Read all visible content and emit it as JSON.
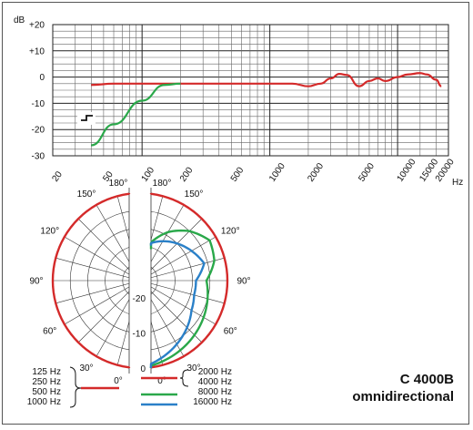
{
  "chart_data": [
    {
      "type": "line",
      "yunit": "dB",
      "xunit": "Hz",
      "xscale": "log",
      "xlim": [
        20,
        25000
      ],
      "ylim": [
        -30,
        20
      ],
      "yticks": [
        "+20",
        "+10",
        "0",
        "-10",
        "-20",
        "-30"
      ],
      "ytick_values": [
        20,
        10,
        0,
        -10,
        -20,
        -30
      ],
      "xticks": [
        "20",
        "50",
        "100",
        "200",
        "500",
        "1000",
        "2000",
        "5000",
        "10000",
        "15000",
        "20000"
      ],
      "xtick_values": [
        20,
        50,
        100,
        200,
        500,
        1000,
        2000,
        5000,
        10000,
        15000,
        20000
      ],
      "grid": true,
      "series": [
        {
          "color": "#d42a2a",
          "x": [
            40,
            60,
            100,
            200,
            500,
            1000,
            1500,
            2000,
            2500,
            3000,
            3500,
            4000,
            5000,
            6000,
            7000,
            8000,
            10000,
            12000,
            15000,
            17000,
            20000,
            22000
          ],
          "y": [
            -3,
            -2.5,
            -2.5,
            -2.5,
            -2.5,
            -2.5,
            -2.5,
            -3.5,
            -2.5,
            -0.5,
            1.2,
            0.8,
            -3.5,
            -1.5,
            -0.5,
            -1.5,
            0,
            1,
            1.5,
            1,
            -1,
            -3.5
          ]
        },
        {
          "color": "#2aa84a",
          "x": [
            40,
            60,
            100,
            150,
            200
          ],
          "y": [
            -26,
            -18,
            -9,
            -3,
            -2.5
          ]
        }
      ],
      "switch_symbol": "low-cut-switch-icon"
    },
    {
      "type": "polar",
      "angle_labels": [
        "180°",
        "150°",
        "120°",
        "90°",
        "60°",
        "30°",
        "0°"
      ],
      "angle_label_values": [
        180,
        150,
        120,
        90,
        60,
        30,
        0
      ],
      "radial_labels": [
        "0",
        "-10",
        "-20"
      ],
      "radial_values": [
        0,
        -10,
        -20
      ],
      "rlim": [
        -25,
        0
      ],
      "series": [
        {
          "group": "left",
          "color": "#d42a2a",
          "frequencies": [
            "125 Hz",
            "250 Hz",
            "500 Hz",
            "1000 Hz"
          ],
          "angles": [
            0,
            30,
            60,
            90,
            120,
            150,
            180
          ],
          "db": [
            0,
            0,
            0,
            0,
            0,
            0,
            0
          ]
        },
        {
          "group": "right",
          "color": "#d42a2a",
          "frequencies": [
            "2000 Hz",
            "4000 Hz"
          ],
          "angles": [
            0,
            30,
            60,
            90,
            120,
            150,
            180
          ],
          "db": [
            0,
            0,
            0,
            0,
            0,
            0,
            0
          ]
        },
        {
          "group": "right",
          "color": "#2aa84a",
          "frequencies": [
            "8000 Hz"
          ],
          "angles": [
            0,
            15,
            30,
            45,
            60,
            75,
            90,
            105,
            120,
            135,
            150,
            165,
            180
          ],
          "db": [
            0,
            -1,
            -2,
            -3,
            -4,
            -5,
            -6,
            -3,
            -2,
            -5,
            -9,
            -14,
            -16
          ]
        },
        {
          "group": "right",
          "color": "#2a80c8",
          "frequencies": [
            "16000 Hz"
          ],
          "angles": [
            0,
            15,
            30,
            45,
            60,
            75,
            90,
            105,
            120,
            135,
            150,
            165,
            180
          ],
          "db": [
            0,
            -2,
            -4,
            -6,
            -8,
            -9,
            -9,
            -6,
            -8,
            -10,
            -12,
            -14,
            -15
          ]
        }
      ]
    }
  ],
  "legend": {
    "left_entries": [
      "125 Hz",
      "250 Hz",
      "500 Hz",
      "1000 Hz"
    ],
    "right_entries": [
      "2000 Hz",
      "4000 Hz",
      "8000 Hz",
      "16000 Hz"
    ],
    "left_color": "#d42a2a",
    "right_colors": [
      "#d42a2a",
      "#2aa84a",
      "#2a80c8"
    ]
  },
  "model": {
    "name": "C 4000B",
    "pattern": "omnidirectional"
  }
}
